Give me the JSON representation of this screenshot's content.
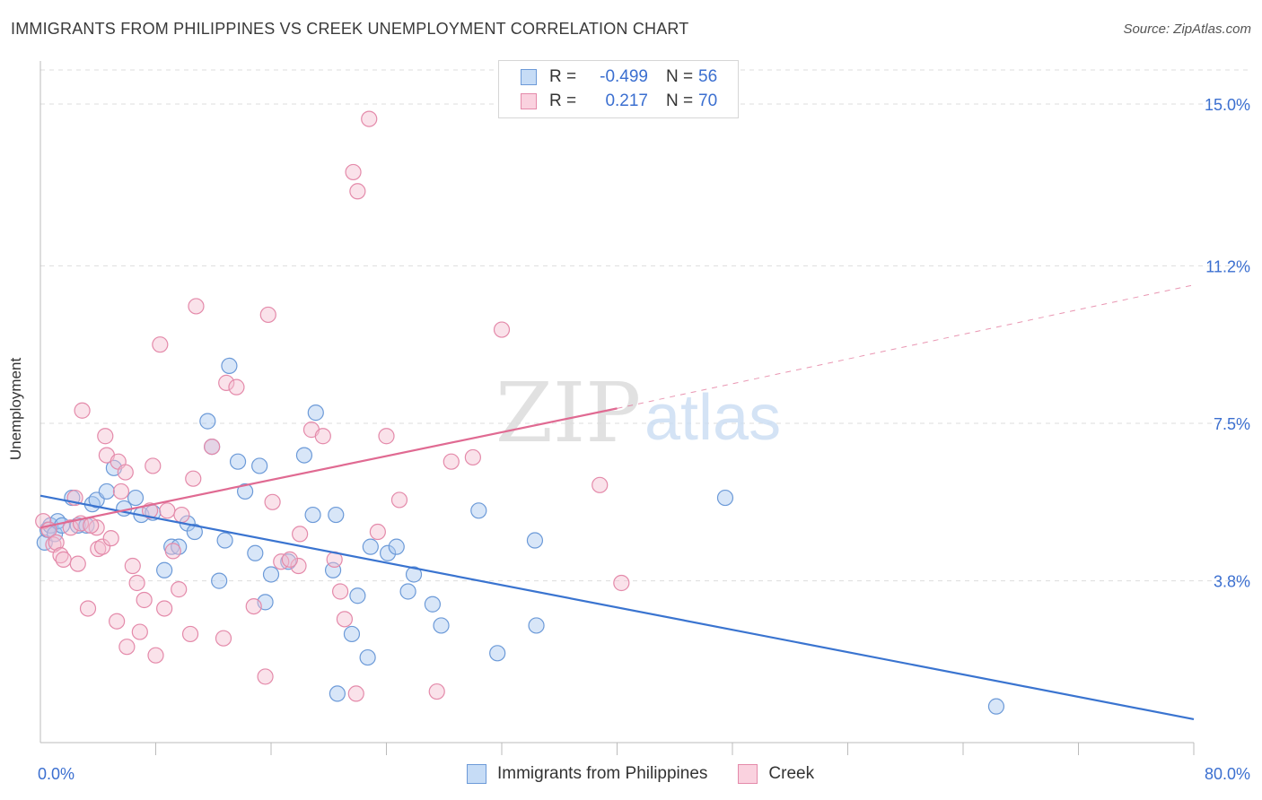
{
  "title": "IMMIGRANTS FROM PHILIPPINES VS CREEK UNEMPLOYMENT CORRELATION CHART",
  "source": "Source: ZipAtlas.com",
  "watermark": {
    "zip": "ZIP",
    "atlas": "atlas"
  },
  "legend": {
    "r_label": "R =",
    "n_label": "N =",
    "series": [
      {
        "r": "-0.499",
        "n": "56"
      },
      {
        "r": "0.217",
        "n": "70"
      }
    ]
  },
  "colors": {
    "blue_fill": "#a9c8f0",
    "blue_stroke": "#6c9ad8",
    "blue_line": "#3a74d0",
    "pink_fill": "#f5bfd0",
    "pink_stroke": "#e48aaa",
    "pink_line": "#e06a92",
    "tick_text": "#3b6fd0",
    "grid": "#dddddd"
  },
  "chart_data": {
    "type": "scatter",
    "xlabel": "",
    "ylabel": "Unemployment",
    "xlim": [
      0,
      80
    ],
    "ylim": [
      0,
      15.8
    ],
    "x_ticks": [
      "0.0%",
      "80.0%"
    ],
    "y_ticks": [
      {
        "value": 3.8,
        "label": "3.8%"
      },
      {
        "value": 7.5,
        "label": "7.5%"
      },
      {
        "value": 11.2,
        "label": "11.2%"
      },
      {
        "value": 15.0,
        "label": "15.0%"
      }
    ],
    "grid": true,
    "legend_position": "bottom-center",
    "series": [
      {
        "name": "Immigrants from Philippines",
        "r": -0.499,
        "n": 56,
        "trend": {
          "x0": 0,
          "y0": 5.8,
          "x1": 80,
          "y1": 0.55
        },
        "points": [
          [
            0.3,
            4.7
          ],
          [
            0.5,
            5.0
          ],
          [
            0.7,
            5.1
          ],
          [
            1.0,
            4.9
          ],
          [
            1.2,
            5.2
          ],
          [
            1.5,
            5.1
          ],
          [
            2.2,
            5.75
          ],
          [
            2.6,
            5.1
          ],
          [
            3.2,
            5.1
          ],
          [
            3.6,
            5.6
          ],
          [
            3.9,
            5.7
          ],
          [
            4.6,
            5.9
          ],
          [
            5.1,
            6.45
          ],
          [
            5.8,
            5.5
          ],
          [
            6.6,
            5.75
          ],
          [
            7.0,
            5.35
          ],
          [
            7.8,
            5.4
          ],
          [
            8.6,
            4.05
          ],
          [
            9.1,
            4.6
          ],
          [
            9.6,
            4.6
          ],
          [
            10.2,
            5.15
          ],
          [
            10.7,
            4.95
          ],
          [
            11.6,
            7.55
          ],
          [
            11.9,
            6.95
          ],
          [
            12.4,
            3.8
          ],
          [
            12.8,
            4.75
          ],
          [
            13.1,
            8.85
          ],
          [
            13.7,
            6.6
          ],
          [
            14.2,
            5.9
          ],
          [
            14.9,
            4.45
          ],
          [
            15.2,
            6.5
          ],
          [
            15.6,
            3.3
          ],
          [
            16.0,
            3.95
          ],
          [
            17.2,
            4.25
          ],
          [
            18.3,
            6.75
          ],
          [
            19.1,
            7.75
          ],
          [
            18.9,
            5.35
          ],
          [
            20.3,
            4.05
          ],
          [
            20.5,
            5.35
          ],
          [
            20.6,
            1.15
          ],
          [
            21.6,
            2.55
          ],
          [
            22.0,
            3.45
          ],
          [
            22.7,
            2.0
          ],
          [
            22.9,
            4.6
          ],
          [
            24.1,
            4.45
          ],
          [
            24.7,
            4.6
          ],
          [
            25.5,
            3.55
          ],
          [
            25.9,
            3.95
          ],
          [
            27.2,
            3.25
          ],
          [
            27.8,
            2.75
          ],
          [
            30.4,
            5.45
          ],
          [
            31.7,
            2.1
          ],
          [
            34.3,
            4.75
          ],
          [
            34.4,
            2.75
          ],
          [
            47.5,
            5.75
          ],
          [
            66.3,
            0.85
          ]
        ]
      },
      {
        "name": "Creek",
        "r": 0.217,
        "n": 70,
        "trend": {
          "x0": 0,
          "y0": 5.05,
          "x1": 40,
          "y1": 7.85
        },
        "trend_ext": {
          "x0": 40,
          "y0": 7.85,
          "x1": 80,
          "y1": 10.75
        },
        "points": [
          [
            0.2,
            5.2
          ],
          [
            0.6,
            5.0
          ],
          [
            0.9,
            4.65
          ],
          [
            1.1,
            4.7
          ],
          [
            1.4,
            4.4
          ],
          [
            1.6,
            4.3
          ],
          [
            2.1,
            5.05
          ],
          [
            2.4,
            5.75
          ],
          [
            2.8,
            5.15
          ],
          [
            2.6,
            4.2
          ],
          [
            2.9,
            7.8
          ],
          [
            3.3,
            3.15
          ],
          [
            3.9,
            5.05
          ],
          [
            3.5,
            5.1
          ],
          [
            4.0,
            4.55
          ],
          [
            4.3,
            4.6
          ],
          [
            4.5,
            7.2
          ],
          [
            4.6,
            6.75
          ],
          [
            4.9,
            4.8
          ],
          [
            5.3,
            2.85
          ],
          [
            5.4,
            6.6
          ],
          [
            5.6,
            5.9
          ],
          [
            5.9,
            6.35
          ],
          [
            6.0,
            2.25
          ],
          [
            6.4,
            4.15
          ],
          [
            6.7,
            3.75
          ],
          [
            6.9,
            2.6
          ],
          [
            7.2,
            3.35
          ],
          [
            7.6,
            5.45
          ],
          [
            7.8,
            6.5
          ],
          [
            8.0,
            2.05
          ],
          [
            8.3,
            9.35
          ],
          [
            8.6,
            3.15
          ],
          [
            8.8,
            5.45
          ],
          [
            9.2,
            4.5
          ],
          [
            9.6,
            3.6
          ],
          [
            9.8,
            5.35
          ],
          [
            10.4,
            2.55
          ],
          [
            10.6,
            6.2
          ],
          [
            10.8,
            10.25
          ],
          [
            11.9,
            6.95
          ],
          [
            12.7,
            2.45
          ],
          [
            12.9,
            8.45
          ],
          [
            13.6,
            8.35
          ],
          [
            14.8,
            3.2
          ],
          [
            15.6,
            1.55
          ],
          [
            15.8,
            10.05
          ],
          [
            16.1,
            5.65
          ],
          [
            16.7,
            4.25
          ],
          [
            17.9,
            4.15
          ],
          [
            17.3,
            4.3
          ],
          [
            18.0,
            4.9
          ],
          [
            18.8,
            7.35
          ],
          [
            19.6,
            7.2
          ],
          [
            20.4,
            4.3
          ],
          [
            20.8,
            3.55
          ],
          [
            21.1,
            2.9
          ],
          [
            21.7,
            13.4
          ],
          [
            22.0,
            12.95
          ],
          [
            22.8,
            14.65
          ],
          [
            23.4,
            4.95
          ],
          [
            24.0,
            7.2
          ],
          [
            24.9,
            5.7
          ],
          [
            27.5,
            1.2
          ],
          [
            28.5,
            6.6
          ],
          [
            30.0,
            6.7
          ],
          [
            32.0,
            9.7
          ],
          [
            38.8,
            6.05
          ],
          [
            40.3,
            3.75
          ],
          [
            21.9,
            1.15
          ]
        ]
      }
    ]
  }
}
